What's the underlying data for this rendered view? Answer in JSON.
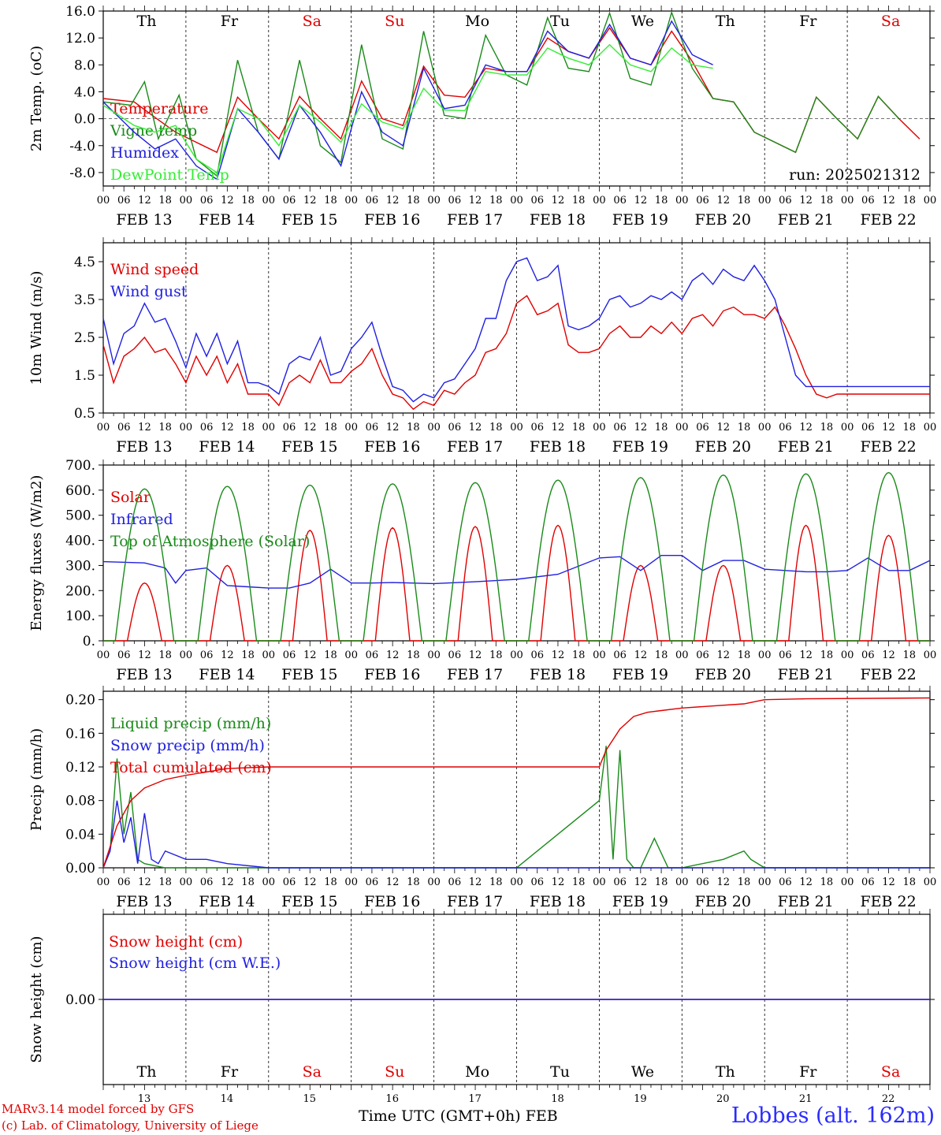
{
  "run_label": "run: 2025021312",
  "footer": {
    "credit_line1": "MARv3.14 model forced by GFS",
    "credit_line2": "(c) Lab. of Climatology, University of Liege",
    "time_axis_label": "Time UTC (GMT+0h)",
    "month_label": "FEB",
    "station": "Lobbes (alt. 162m)"
  },
  "day_names": [
    {
      "name": "Th",
      "color": "#000000"
    },
    {
      "name": "Fr",
      "color": "#000000"
    },
    {
      "name": "Sa",
      "color": "#e00000"
    },
    {
      "name": "Su",
      "color": "#e00000"
    },
    {
      "name": "Mo",
      "color": "#000000"
    },
    {
      "name": "Tu",
      "color": "#000000"
    },
    {
      "name": "We",
      "color": "#000000"
    },
    {
      "name": "Th",
      "color": "#000000"
    },
    {
      "name": "Fr",
      "color": "#000000"
    },
    {
      "name": "Sa",
      "color": "#e00000"
    }
  ],
  "date_labels": [
    "FEB 13",
    "FEB 14",
    "FEB 15",
    "FEB 16",
    "FEB 17",
    "FEB 18",
    "FEB 19",
    "FEB 20",
    "FEB 21",
    "FEB 22"
  ],
  "day_numbers": [
    "13",
    "14",
    "15",
    "16",
    "17",
    "18",
    "19",
    "20",
    "21",
    "22"
  ],
  "hour_labels": [
    "00",
    "06",
    "12",
    "18"
  ],
  "colors": {
    "red": "#e00000",
    "green": "#1a8a1a",
    "blue": "#2020e0",
    "lightgreen": "#33ee33"
  },
  "chart_data": [
    {
      "type": "line",
      "ylabel": "2m Temp. (oC)",
      "ylim": [
        -10,
        16
      ],
      "yticks": [
        "-8.0",
        "-4.0",
        "0.0",
        "4.0",
        "8.0",
        "12.0",
        "16.0"
      ],
      "x_unit": "hours from 13 Feb 00 UTC",
      "zero_line": true,
      "series": [
        {
          "name": "Temperature",
          "color": "#e00000",
          "x": [
            0,
            9,
            15,
            21,
            27,
            33,
            39,
            45,
            51,
            57,
            63,
            69,
            75,
            81,
            87,
            93,
            99,
            105,
            111,
            117,
            123,
            129,
            135,
            141,
            147,
            153,
            159,
            165,
            171,
            177,
            183,
            189,
            195,
            201,
            207,
            213,
            219,
            225,
            231,
            237
          ],
          "y": [
            3,
            2.5,
            0.2,
            -2,
            -3.5,
            -5,
            3.2,
            0,
            -3,
            3.3,
            0,
            -3,
            5.6,
            0,
            -1,
            7.8,
            3.5,
            3.2,
            7.5,
            7,
            7,
            12,
            10,
            9,
            13.5,
            9,
            8,
            13,
            8.5,
            3,
            2.5,
            -2,
            -3.5,
            -5,
            3.2,
            0,
            -3,
            3.3,
            0,
            -3
          ]
        },
        {
          "name": "Vigne temp",
          "color": "#1a8a1a",
          "x": [
            0,
            8,
            12,
            16,
            22,
            27,
            33,
            39,
            45,
            51,
            57,
            63,
            69,
            75,
            81,
            87,
            93,
            99,
            105,
            111,
            117,
            123,
            129,
            135,
            141,
            147,
            153,
            159,
            165,
            171,
            177,
            183,
            189,
            195,
            201,
            207,
            213,
            219,
            225,
            231
          ],
          "y": [
            2.5,
            2,
            5.5,
            -3,
            3.5,
            -6,
            -8.5,
            8.7,
            -2,
            -6,
            8.7,
            -4,
            -6.5,
            11,
            -3,
            -4.5,
            13,
            0.5,
            0,
            12.4,
            6.5,
            5,
            15,
            7.5,
            7,
            15.7,
            6,
            5,
            15.8,
            7.5,
            3,
            2.5,
            -2,
            -3.5,
            -5,
            3.2,
            0,
            -3,
            3.3,
            0
          ]
        },
        {
          "name": "Humidex",
          "color": "#2020e0",
          "x": [
            0,
            9,
            15,
            21,
            27,
            33,
            39,
            45,
            51,
            57,
            63,
            69,
            75,
            81,
            87,
            93,
            99,
            105,
            111,
            117,
            123,
            129,
            135,
            141,
            147,
            153,
            159,
            165,
            171,
            177
          ],
          "y": [
            2.5,
            -2,
            -4.5,
            -3,
            -7,
            -9,
            1.5,
            -2,
            -6,
            2,
            -2,
            -7,
            4,
            -2,
            -4,
            7.5,
            1.5,
            2,
            8,
            7,
            7,
            13,
            10,
            9,
            14,
            9,
            8,
            14.5,
            9.5,
            8
          ]
        },
        {
          "name": "DewPoint Temp",
          "color": "#33ee33",
          "x": [
            0,
            9,
            15,
            21,
            27,
            33,
            39,
            45,
            51,
            57,
            63,
            69,
            75,
            81,
            87,
            93,
            99,
            105,
            111,
            117,
            123,
            129,
            135,
            141,
            147,
            153,
            159,
            165,
            171,
            177
          ],
          "y": [
            2,
            -1,
            -2,
            -1,
            -6,
            -8,
            1.5,
            0,
            -4,
            2,
            -0.5,
            -3.5,
            2.2,
            -0.5,
            -1.5,
            4.5,
            1.3,
            1.2,
            7,
            6.5,
            6.5,
            10.5,
            9,
            8,
            11,
            8,
            7,
            10.5,
            8,
            7.5
          ]
        }
      ]
    },
    {
      "type": "line",
      "ylabel": "10m Wind (m/s)",
      "ylim": [
        0.5,
        5.0
      ],
      "yticks": [
        "0.5",
        "1.5",
        "2.5",
        "3.5",
        "4.5"
      ],
      "x_unit": "hours from 13 Feb 00 UTC",
      "series": [
        {
          "name": "Wind speed",
          "color": "#e00000",
          "x": [
            0,
            3,
            6,
            9,
            12,
            15,
            18,
            21,
            24,
            27,
            30,
            33,
            36,
            39,
            42,
            45,
            48,
            51,
            54,
            57,
            60,
            63,
            66,
            69,
            72,
            75,
            78,
            81,
            84,
            87,
            90,
            93,
            96,
            99,
            102,
            105,
            108,
            111,
            114,
            117,
            120,
            123,
            126,
            129,
            132,
            135,
            138,
            141,
            144,
            147,
            150,
            153,
            156,
            159,
            162,
            165,
            168,
            171,
            174,
            177,
            180,
            183,
            186,
            189,
            192,
            195,
            198,
            201,
            204,
            207,
            210,
            213,
            216,
            219,
            222,
            225,
            228,
            231,
            234,
            237,
            240
          ],
          "y": [
            2.3,
            1.3,
            2,
            2.2,
            2.5,
            2.1,
            2.2,
            1.8,
            1.3,
            2,
            1.5,
            2,
            1.3,
            1.8,
            1,
            1,
            1,
            0.7,
            1.3,
            1.5,
            1.3,
            1.9,
            1.3,
            1.3,
            1.6,
            1.8,
            2.2,
            1.5,
            1,
            0.9,
            0.6,
            0.8,
            0.7,
            1.1,
            1,
            1.3,
            1.5,
            2.1,
            2.2,
            2.6,
            3.4,
            3.6,
            3.1,
            3.2,
            3.4,
            2.3,
            2.1,
            2.1,
            2.2,
            2.6,
            2.8,
            2.5,
            2.5,
            2.8,
            2.6,
            2.9,
            2.6,
            3,
            3.1,
            2.8,
            3.2,
            3.3,
            3.1,
            3.1,
            3,
            3.3,
            2.8,
            2.2,
            1.5,
            1,
            0.9,
            1,
            1,
            1,
            1,
            1,
            1,
            1,
            1,
            1,
            1
          ]
        },
        {
          "name": "Wind gust",
          "color": "#2020e0",
          "x": [
            0,
            3,
            6,
            9,
            12,
            15,
            18,
            21,
            24,
            27,
            30,
            33,
            36,
            39,
            42,
            45,
            48,
            51,
            54,
            57,
            60,
            63,
            66,
            69,
            72,
            75,
            78,
            81,
            84,
            87,
            90,
            93,
            96,
            99,
            102,
            105,
            108,
            111,
            114,
            117,
            120,
            123,
            126,
            129,
            132,
            135,
            138,
            141,
            144,
            147,
            150,
            153,
            156,
            159,
            162,
            165,
            168,
            171,
            174,
            177,
            180,
            183,
            186,
            189,
            192,
            195,
            198,
            201,
            204,
            207,
            210,
            213,
            216,
            219,
            222,
            225,
            228,
            231,
            234,
            237,
            240
          ],
          "y": [
            3,
            1.8,
            2.6,
            2.8,
            3.4,
            2.9,
            3,
            2.4,
            1.7,
            2.6,
            2,
            2.6,
            1.8,
            2.4,
            1.3,
            1.3,
            1.2,
            1,
            1.8,
            2,
            1.9,
            2.5,
            1.5,
            1.6,
            2.2,
            2.5,
            2.9,
            2,
            1.2,
            1.1,
            0.8,
            1,
            0.9,
            1.3,
            1.4,
            1.8,
            2.2,
            3,
            3,
            4,
            4.5,
            4.6,
            4,
            4.1,
            4.4,
            2.8,
            2.7,
            2.8,
            3,
            3.5,
            3.6,
            3.3,
            3.4,
            3.6,
            3.5,
            3.7,
            3.5,
            4,
            4.2,
            3.9,
            4.3,
            4.1,
            4,
            4.4,
            4,
            3.5,
            2.5,
            1.5,
            1.2,
            1.2,
            1.2,
            1.2,
            1.2,
            1.2,
            1.2,
            1.2,
            1.2,
            1.2,
            1.2,
            1.2,
            1.2
          ]
        }
      ]
    },
    {
      "type": "line",
      "ylabel": "Energy fluxes (W/m2)",
      "ylim": [
        0,
        700
      ],
      "yticks": [
        "0.",
        "100.",
        "200.",
        "300.",
        "400.",
        "500.",
        "600.",
        "700."
      ],
      "x_unit": "hours from 13 Feb 00 UTC",
      "series": [
        {
          "name": "Solar",
          "color": "#e00000",
          "daily_peak_hours_utc": 12,
          "daily_peaks": [
            230,
            300,
            440,
            450,
            455,
            460,
            300,
            300,
            460,
            420
          ]
        },
        {
          "name": "Infrared",
          "color": "#2020e0",
          "x": [
            0,
            12,
            18,
            21,
            24,
            30,
            36,
            42,
            48,
            54,
            60,
            66,
            72,
            78,
            84,
            96,
            108,
            120,
            132,
            144,
            150,
            156,
            162,
            168,
            174,
            180,
            186,
            192,
            198,
            204,
            210,
            216,
            222,
            228,
            234,
            240
          ],
          "y": [
            315,
            310,
            290,
            230,
            280,
            290,
            220,
            215,
            210,
            210,
            230,
            285,
            230,
            230,
            232,
            228,
            235,
            245,
            265,
            330,
            335,
            280,
            340,
            340,
            280,
            320,
            320,
            285,
            280,
            275,
            275,
            280,
            330,
            280,
            280,
            320
          ]
        },
        {
          "name": "Top of Atmosphere (Solar)",
          "color": "#1a8a1a",
          "daily_peak_hours_utc": 12,
          "daily_peaks": [
            605,
            615,
            620,
            625,
            630,
            640,
            650,
            660,
            665,
            670
          ]
        }
      ]
    },
    {
      "type": "line",
      "ylabel": "Precip (mm/h)",
      "ylim": [
        0,
        0.21
      ],
      "yticks": [
        "0.00",
        "0.04",
        "0.08",
        "0.12",
        "0.16",
        "0.20"
      ],
      "x_unit": "hours from 13 Feb 00 UTC",
      "series": [
        {
          "name": "Liquid precip (mm/h)",
          "color": "#1a8a1a",
          "x": [
            0,
            2,
            4,
            6,
            8,
            10,
            12,
            18,
            24,
            120,
            144,
            146,
            148,
            150,
            152,
            154,
            156,
            160,
            164,
            168,
            180,
            186,
            188,
            192,
            240
          ],
          "y": [
            0,
            0.02,
            0.13,
            0.04,
            0.09,
            0.01,
            0.005,
            0,
            0,
            0,
            0.08,
            0.145,
            0.01,
            0.14,
            0.01,
            0,
            0,
            0.035,
            0,
            0,
            0.01,
            0.02,
            0.01,
            0,
            0
          ]
        },
        {
          "name": "Snow precip (mm/h)",
          "color": "#2020e0",
          "x": [
            0,
            2,
            4,
            6,
            8,
            10,
            12,
            14,
            16,
            18,
            24,
            30,
            36,
            48,
            240
          ],
          "y": [
            0,
            0.02,
            0.08,
            0.03,
            0.06,
            0.005,
            0.065,
            0.01,
            0.005,
            0.02,
            0.01,
            0.01,
            0.005,
            0,
            0
          ]
        },
        {
          "name": "Total cumulated (cm)",
          "color": "#e00000",
          "x": [
            0,
            4,
            8,
            12,
            18,
            24,
            36,
            48,
            72,
            96,
            120,
            144,
            146,
            150,
            154,
            158,
            162,
            168,
            186,
            192,
            204,
            240
          ],
          "y": [
            0,
            0.05,
            0.08,
            0.095,
            0.105,
            0.11,
            0.118,
            0.12,
            0.12,
            0.12,
            0.12,
            0.12,
            0.14,
            0.165,
            0.18,
            0.185,
            0.187,
            0.19,
            0.195,
            0.2,
            0.201,
            0.202
          ]
        }
      ]
    },
    {
      "type": "line",
      "ylabel": "Snow height (cm)",
      "ylim": [
        -1,
        1
      ],
      "yticks": [
        "0.00"
      ],
      "x_unit": "hours from 13 Feb 00 UTC",
      "series": [
        {
          "name": "Snow height (cm)",
          "color": "#e00000",
          "x": [
            0,
            240
          ],
          "y": [
            0,
            0
          ]
        },
        {
          "name": "Snow height (cm W.E.)",
          "color": "#2020e0",
          "x": [
            0,
            240
          ],
          "y": [
            0,
            0
          ]
        }
      ]
    }
  ]
}
